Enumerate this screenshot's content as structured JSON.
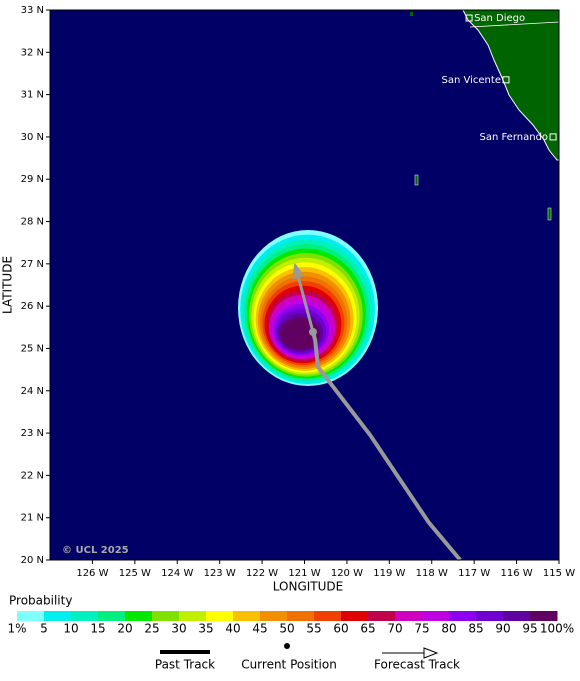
{
  "chart_data": {
    "type": "map",
    "xlabel": "LONGITUDE",
    "ylabel": "LATITUDE",
    "credit": "© UCL 2025",
    "xlim": [
      -127,
      -115
    ],
    "ylim": [
      20,
      33
    ],
    "xticks": [
      {
        "value": -126,
        "label": "126 W"
      },
      {
        "value": -125,
        "label": "125 W"
      },
      {
        "value": -124,
        "label": "124 W"
      },
      {
        "value": -123,
        "label": "123 W"
      },
      {
        "value": -122,
        "label": "122 W"
      },
      {
        "value": -121,
        "label": "121 W"
      },
      {
        "value": -120,
        "label": "120 W"
      },
      {
        "value": -119,
        "label": "119 W"
      },
      {
        "value": -118,
        "label": "118 W"
      },
      {
        "value": -117,
        "label": "117 W"
      },
      {
        "value": -116,
        "label": "116 W"
      },
      {
        "value": -115,
        "label": "115 W"
      }
    ],
    "yticks": [
      {
        "value": 20,
        "label": "20 N"
      },
      {
        "value": 21,
        "label": "21 N"
      },
      {
        "value": 22,
        "label": "22 N"
      },
      {
        "value": 23,
        "label": "23 N"
      },
      {
        "value": 24,
        "label": "24 N"
      },
      {
        "value": 25,
        "label": "25 N"
      },
      {
        "value": 26,
        "label": "26 N"
      },
      {
        "value": 27,
        "label": "27 N"
      },
      {
        "value": 28,
        "label": "28 N"
      },
      {
        "value": 29,
        "label": "29 N"
      },
      {
        "value": 30,
        "label": "30 N"
      },
      {
        "value": 31,
        "label": "31 N"
      },
      {
        "value": 32,
        "label": "32 N"
      },
      {
        "value": 33,
        "label": "33 N"
      }
    ],
    "cities": [
      {
        "name": "San Diego",
        "lon": -117.12,
        "lat": 32.81
      },
      {
        "name": "San Vicente",
        "lon": -116.25,
        "lat": 31.35
      },
      {
        "name": "San Fernando",
        "lon": -115.14,
        "lat": 30.0
      }
    ],
    "track": {
      "lon": [
        -117.33,
        -118.08,
        -119.45,
        -120.68,
        -120.75,
        -120.8
      ],
      "lat": [
        20,
        20.9,
        22.95,
        24.56,
        25.2,
        25.39
      ]
    },
    "current_position": {
      "lon": -120.8,
      "lat": 25.39
    },
    "forecast_position": {
      "lon": -121.22,
      "lat": 26.97
    },
    "colorbar": {
      "title": "Probability",
      "ticks": [
        {
          "value": 1,
          "label": "1%"
        },
        5,
        10,
        15,
        20,
        25,
        30,
        35,
        40,
        45,
        50,
        55,
        60,
        65,
        70,
        75,
        80,
        85,
        90,
        95,
        {
          "value": 100,
          "label": "100%"
        }
      ],
      "colors": [
        "#80ffff",
        "#00eeee",
        "#00f0c0",
        "#00f080",
        "#00e800",
        "#80e000",
        "#c0f000",
        "#ffff00",
        "#f8c000",
        "#f09000",
        "#f07000",
        "#f04000",
        "#e00000",
        "#c0004a",
        "#d000c0",
        "#c000e0",
        "#9000f0",
        "#7000d0",
        "#6000a0",
        "#600060"
      ]
    },
    "legend": [
      "Past Track",
      "Current Position",
      "Forecast Track"
    ]
  }
}
